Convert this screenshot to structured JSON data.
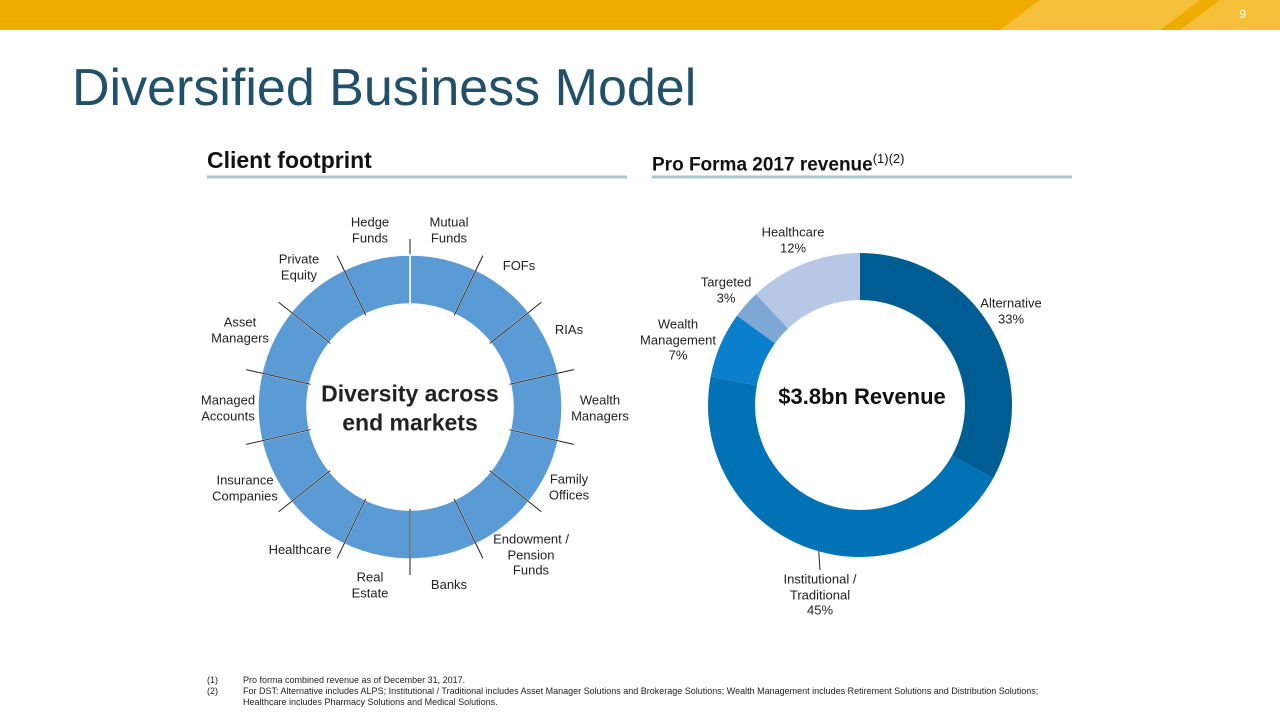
{
  "slide": {
    "page_number": "9",
    "title": "Diversified Business Model",
    "footnotes": [
      {
        "marker": "(1)",
        "text": "Pro forma combined revenue as of December 31, 2017."
      },
      {
        "marker": "(2)",
        "text": "For DST: Alternative includes ALPS; Institutional / Traditional includes Asset Manager Solutions and Brokerage Solutions;  Wealth Management includes Retirement Solutions and Distribution Solutions; Healthcare includes Pharmacy Solutions and Medical Solutions."
      }
    ]
  },
  "client_footprint": {
    "heading": "Client footprint",
    "center_text": "Diversity across end markets",
    "segments": [
      "Mutual Funds",
      "FOFs",
      "RIAs",
      "Wealth Managers",
      "Family Offices",
      "Endowment / Pension Funds",
      "Banks",
      "Real Estate",
      "Healthcare",
      "Insurance Companies",
      "Managed Accounts",
      "Asset Managers",
      "Private Equity",
      "Hedge Funds"
    ]
  },
  "chart_data": {
    "type": "donut",
    "title": "Pro Forma 2017 revenue",
    "title_superscript": "(1)(2)",
    "center_label": "$3.8bn Revenue",
    "categories": [
      "Alternative",
      "Institutional / Traditional",
      "Wealth Management",
      "Targeted",
      "Healthcare"
    ],
    "values": [
      33,
      45,
      7,
      3,
      12
    ],
    "value_labels": [
      "33%",
      "45%",
      "7%",
      "3%",
      "12%"
    ],
    "colors": [
      "#005d94",
      "#0072b5",
      "#0a80cc",
      "#7fa7d6",
      "#b6c8e6"
    ]
  }
}
